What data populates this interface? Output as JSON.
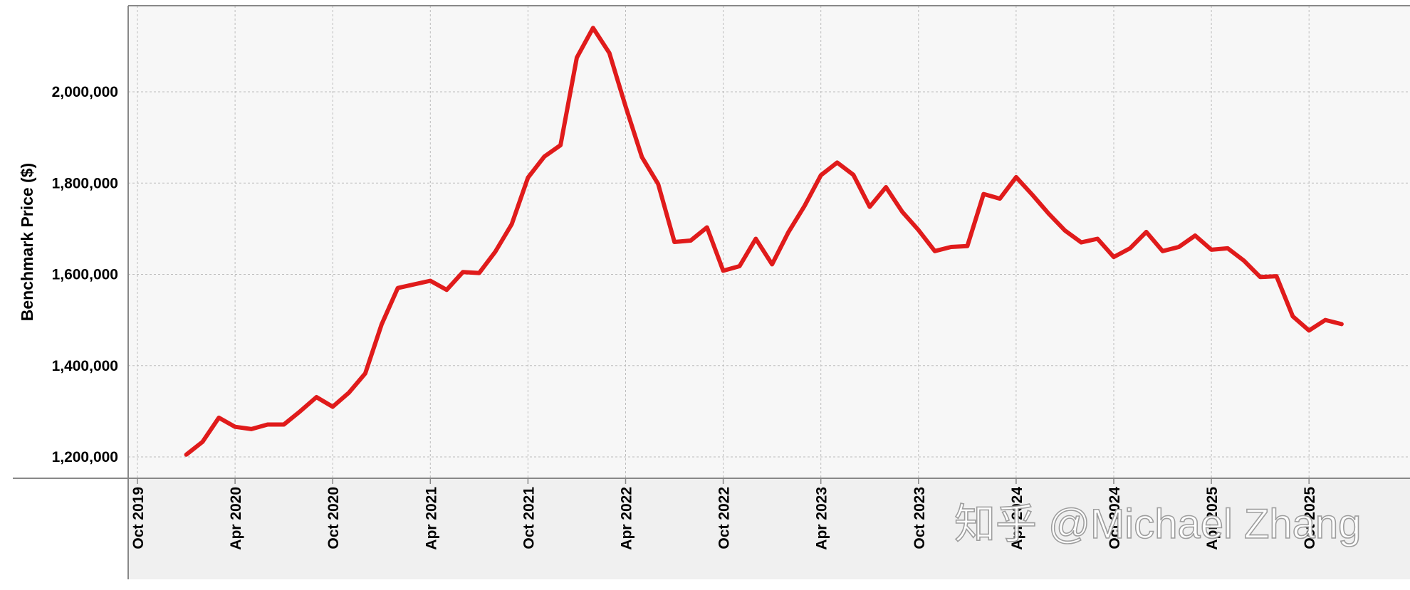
{
  "watermark": "知乎 @Michael Zhang",
  "colors": {
    "series": "#e01b1b",
    "plot_background": "#f7f7f7",
    "axis_band_background": "#f0f0f0",
    "grid": "#bdbdbd",
    "axis": "#888888"
  },
  "chart_data": {
    "type": "line",
    "title": "",
    "xlabel": "",
    "ylabel": "Benchmark Price ($)",
    "grid": true,
    "legend": "none",
    "x_ticks": [
      "Oct 2019",
      "Apr 2020",
      "Oct 2020",
      "Apr 2021",
      "Oct 2021",
      "Apr 2022",
      "Oct 2022",
      "Apr 2023",
      "Oct 2023",
      "Apr 2024",
      "Oct 2024",
      "Apr 2025",
      "Oct 2025"
    ],
    "y_ticks": [
      "1,200,000",
      "1,400,000",
      "1,600,000",
      "1,800,000",
      "2,000,000"
    ],
    "ylim": [
      1150000,
      2190000
    ],
    "xlim": [
      "2019-09",
      "2026-02"
    ],
    "series": [
      {
        "x": [
          "2020-01",
          "2020-02",
          "2020-03",
          "2020-04",
          "2020-05",
          "2020-06",
          "2020-07",
          "2020-08",
          "2020-09",
          "2020-10",
          "2020-11",
          "2020-12",
          "2021-01",
          "2021-02",
          "2021-03",
          "2021-04",
          "2021-05",
          "2021-06",
          "2021-07",
          "2021-08",
          "2021-09",
          "2021-10",
          "2021-11",
          "2021-12",
          "2022-01",
          "2022-02",
          "2022-03",
          "2022-04",
          "2022-05",
          "2022-06",
          "2022-07",
          "2022-08",
          "2022-09",
          "2022-10",
          "2022-11",
          "2022-12",
          "2023-01",
          "2023-02",
          "2023-03",
          "2023-04",
          "2023-05",
          "2023-06",
          "2023-07",
          "2023-08",
          "2023-09",
          "2023-10",
          "2023-11",
          "2023-12",
          "2024-01",
          "2024-02",
          "2024-03",
          "2024-04",
          "2024-05",
          "2024-06",
          "2024-07",
          "2024-08",
          "2024-09",
          "2024-10",
          "2024-11",
          "2024-12",
          "2025-01",
          "2025-02",
          "2025-03",
          "2025-04",
          "2025-05",
          "2025-06",
          "2025-07",
          "2025-08",
          "2025-09",
          "2025-10",
          "2025-11",
          "2025-12"
        ],
        "values": [
          1205000,
          1233000,
          1286000,
          1266000,
          1261000,
          1271000,
          1271000,
          1300000,
          1331000,
          1310000,
          1341000,
          1383000,
          1490000,
          1570000,
          1578000,
          1586000,
          1566000,
          1605000,
          1603000,
          1650000,
          1710000,
          1812000,
          1858000,
          1883000,
          2075000,
          2140000,
          2085000,
          1968000,
          1857000,
          1798000,
          1671000,
          1674000,
          1703000,
          1608000,
          1618000,
          1678000,
          1622000,
          1692000,
          1750000,
          1817000,
          1845000,
          1818000,
          1748000,
          1791000,
          1737000,
          1697000,
          1651000,
          1660000,
          1662000,
          1776000,
          1766000,
          1813000,
          1774000,
          1733000,
          1696000,
          1670000,
          1678000,
          1638000,
          1657000,
          1693000,
          1651000,
          1660000,
          1685000,
          1654000,
          1657000,
          1630000,
          1594000,
          1596000,
          1508000,
          1477000,
          1500000,
          1491000
        ]
      }
    ]
  }
}
